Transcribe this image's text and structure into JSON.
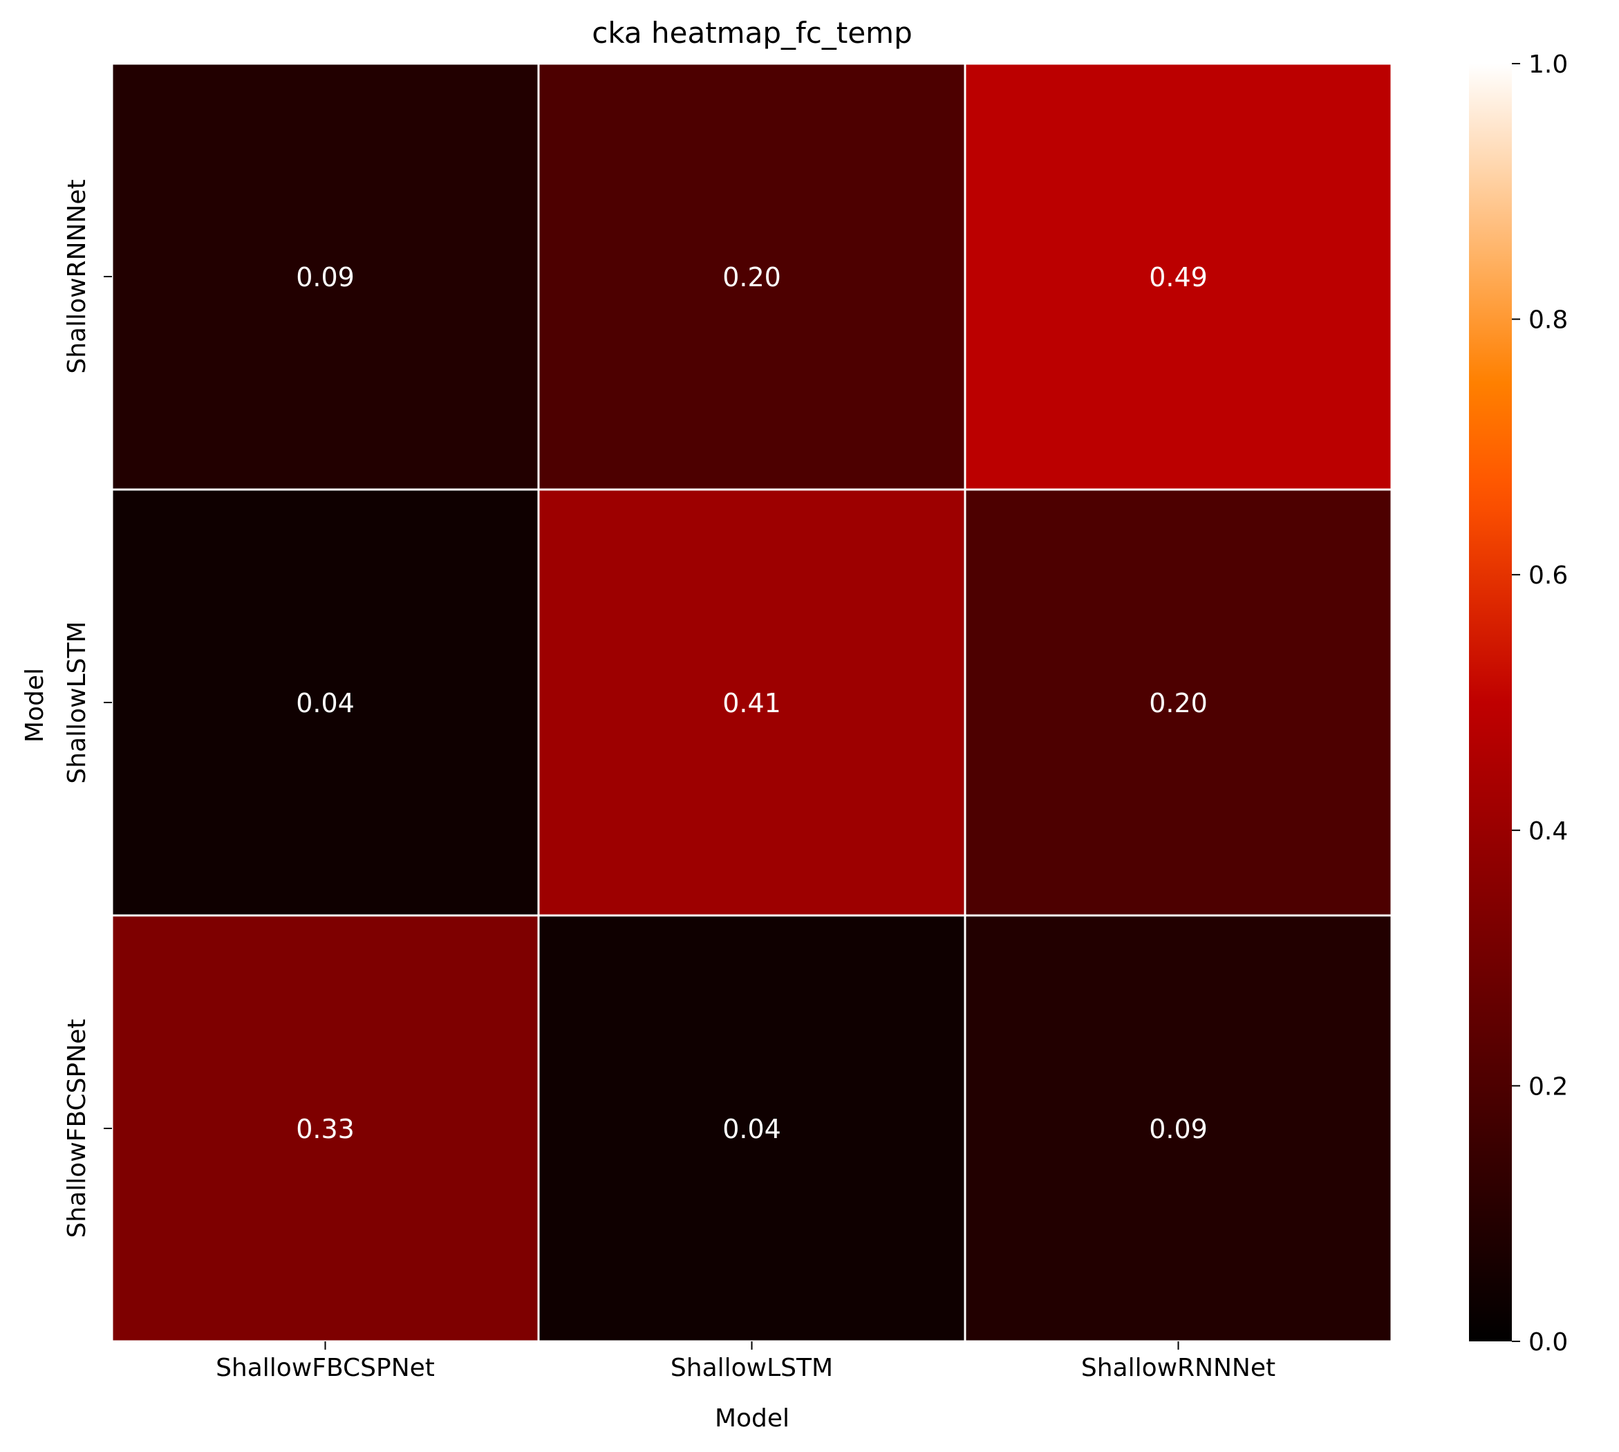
{
  "chart_data": {
    "type": "heatmap",
    "title": "cka heatmap_fc_temp",
    "xlabel": "Model",
    "ylabel": "Model",
    "x_categories": [
      "ShallowFBCSPNet",
      "ShallowLSTM",
      "ShallowRNNNet"
    ],
    "y_categories": [
      "ShallowRNNNet",
      "ShallowLSTM",
      "ShallowFBCSPNet"
    ],
    "values": [
      [
        0.09,
        0.2,
        0.49
      ],
      [
        0.04,
        0.41,
        0.2
      ],
      [
        0.33,
        0.04,
        0.09
      ]
    ],
    "value_labels": [
      [
        "0.09",
        "0.20",
        "0.49"
      ],
      [
        "0.04",
        "0.41",
        "0.20"
      ],
      [
        "0.33",
        "0.04",
        "0.09"
      ]
    ],
    "colorbar": {
      "range": [
        0.0,
        1.0
      ],
      "ticks": [
        0.0,
        0.2,
        0.4,
        0.6,
        0.8,
        1.0
      ],
      "tick_labels": [
        "0.0",
        "0.2",
        "0.4",
        "0.6",
        "0.8",
        "1.0"
      ],
      "colormap": "gist_heat"
    },
    "annotation_color": "#ffffff",
    "cell_border_color": "#ffffff"
  }
}
